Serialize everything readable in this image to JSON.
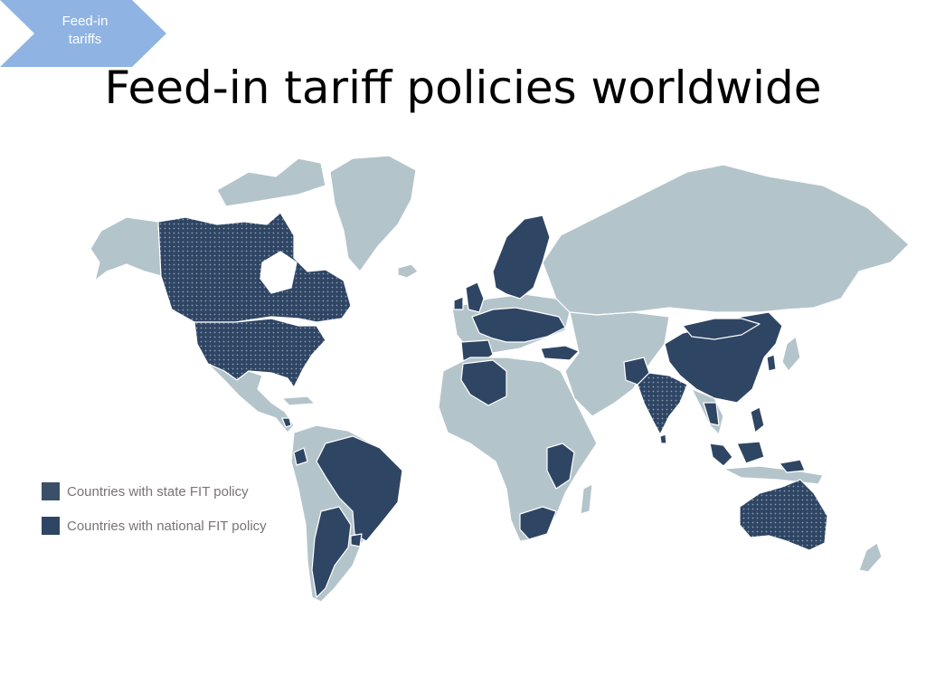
{
  "header": {
    "badge_line1": "Feed-in",
    "badge_line2": "tariffs",
    "title": "Feed-in tariff policies worldwide"
  },
  "colors": {
    "badge": "#8fb4e3",
    "land": "#b4c4cb",
    "fit": "#2f4564",
    "state_dots": "#7d92a6",
    "border": "#ffffff"
  },
  "legend": {
    "items": [
      {
        "label": "Countries with state FIT policy",
        "pattern": "dotted"
      },
      {
        "label": "Countries with national FIT policy",
        "pattern": "solid"
      }
    ]
  }
}
